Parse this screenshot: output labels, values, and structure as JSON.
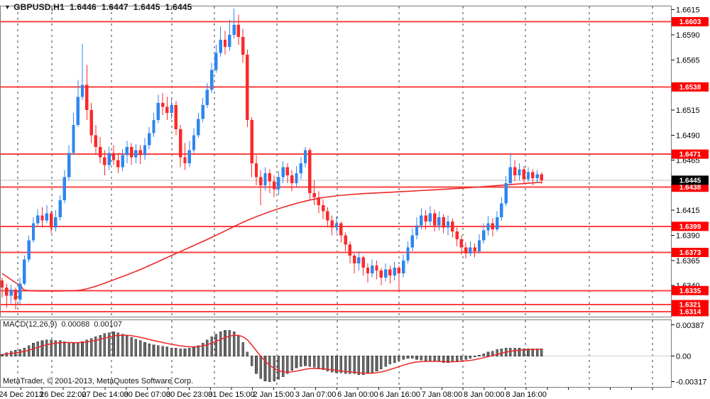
{
  "window": {
    "marker": "▼",
    "symbol_timeframe": "GBPUSD,H1",
    "quote_open": "1.6446",
    "quote_high": "1.6447",
    "quote_low": "1.6445",
    "quote_close": "1.6445"
  },
  "indicator_panel": {
    "name": "MACD(12,26,9)",
    "value": "0.00088",
    "signal_value": "0.00107",
    "axis_labels": [
      "0.00387",
      "0.00",
      "-0.00317"
    ],
    "axis_values": [
      0.00387,
      0,
      -0.00317
    ]
  },
  "footer": {
    "copyright": "MetaTrader, © 2001-2013, MetaQuotes Software Corp."
  },
  "time_axis": {
    "labels": [
      "24 Dec 2013",
      "26 Dec 22:00",
      "27 Dec 14:00",
      "30 Dec 07:00",
      "30 Dec 23:00",
      "31 Dec 15:00",
      "2 Jan 15:00",
      "3 Jan 07:00",
      "6 Jan 00:00",
      "6 Jan 16:00",
      "7 Jan 08:00",
      "8 Jan 00:00",
      "8 Jan 16:00"
    ]
  },
  "price_axis": {
    "tick_labels": [
      "1.6615",
      "1.6590",
      "1.6565",
      "1.6540",
      "1.6515",
      "1.6490",
      "1.6465",
      "1.6440",
      "1.6415",
      "1.6390",
      "1.6365",
      "1.6340",
      "1.6315"
    ],
    "tick_values": [
      1.6615,
      1.659,
      1.6565,
      1.654,
      1.6515,
      1.649,
      1.6465,
      1.644,
      1.6415,
      1.639,
      1.6365,
      1.634,
      1.6315
    ],
    "level_labels": [
      "1.6603",
      "1.6538",
      "1.6471",
      "1.6438",
      "1.6399",
      "1.6373",
      "1.6335",
      "1.6321",
      "1.6314"
    ],
    "current_price_label": "1.6445"
  },
  "colors": {
    "up_candle": "#2f86ee",
    "down_candle": "#fb2a2a",
    "level_line": "#ff4040",
    "level_tag_bg": "#fe0000",
    "current_tag_bg": "#000000",
    "current_price_line": "#bfbfbf",
    "ma_line": "#ee2828",
    "signal_line": "#ee2828",
    "histogram_fill": "#6a6a6a",
    "histogram_stroke": "#3d3d3d",
    "grid": "#3c3c3c",
    "border": "#7a7a7a",
    "zero_line": "#cfcfcf"
  },
  "chart_data": [
    {
      "type": "candlestick",
      "title": "GBPUSD,H1",
      "ylim": [
        1.6309,
        1.6619
      ],
      "x_labels": [
        "24 Dec 2013",
        "26 Dec 22:00",
        "27 Dec 14:00",
        "30 Dec 07:00",
        "30 Dec 23:00",
        "31 Dec 15:00",
        "2 Jan 15:00",
        "3 Jan 07:00",
        "6 Jan 00:00",
        "6 Jan 16:00",
        "7 Jan 08:00",
        "8 Jan 00:00",
        "8 Jan 16:00"
      ],
      "support_resistance_levels": [
        1.6603,
        1.6538,
        1.6471,
        1.6438,
        1.6399,
        1.6373,
        1.6335,
        1.6321,
        1.6314
      ],
      "current_price": 1.6445,
      "ma_line_points": [
        [
          0,
          1.6352
        ],
        [
          4,
          1.634
        ],
        [
          6,
          1.6335
        ],
        [
          16,
          1.6335
        ],
        [
          20,
          1.6338
        ],
        [
          24,
          1.6344
        ],
        [
          31,
          1.6356
        ],
        [
          39,
          1.6372
        ],
        [
          47,
          1.6388
        ],
        [
          55,
          1.6405
        ],
        [
          63,
          1.6418
        ],
        [
          71,
          1.6427
        ],
        [
          79,
          1.6431
        ],
        [
          87,
          1.6433
        ],
        [
          95,
          1.6435
        ],
        [
          103,
          1.6437
        ],
        [
          112,
          1.644
        ],
        [
          121,
          1.6443
        ]
      ],
      "ohlc": [
        [
          1.6345,
          1.6348,
          1.6328,
          1.6338
        ],
        [
          1.6338,
          1.6342,
          1.6318,
          1.633
        ],
        [
          1.633,
          1.6341,
          1.6322,
          1.6336
        ],
        [
          1.6336,
          1.6338,
          1.6316,
          1.6326
        ],
        [
          1.6326,
          1.6348,
          1.632,
          1.6342
        ],
        [
          1.6342,
          1.637,
          1.634,
          1.6366
        ],
        [
          1.6366,
          1.639,
          1.6363,
          1.6385
        ],
        [
          1.6385,
          1.6408,
          1.6383,
          1.6402
        ],
        [
          1.6402,
          1.6416,
          1.64,
          1.641
        ],
        [
          1.641,
          1.6418,
          1.6398,
          1.6405
        ],
        [
          1.6405,
          1.642,
          1.6402,
          1.6412
        ],
        [
          1.6412,
          1.6414,
          1.6392,
          1.6398
        ],
        [
          1.6398,
          1.6415,
          1.6394,
          1.6408
        ],
        [
          1.6408,
          1.643,
          1.6405,
          1.6425
        ],
        [
          1.6425,
          1.6455,
          1.6422,
          1.6448
        ],
        [
          1.6448,
          1.648,
          1.6445,
          1.6472
        ],
        [
          1.6472,
          1.6512,
          1.647,
          1.65
        ],
        [
          1.65,
          1.6545,
          1.6498,
          1.6528
        ],
        [
          1.6528,
          1.6581,
          1.6525,
          1.654
        ],
        [
          1.654,
          1.656,
          1.6505,
          1.6515
        ],
        [
          1.6515,
          1.6522,
          1.6482,
          1.649
        ],
        [
          1.649,
          1.65,
          1.647,
          1.6478
        ],
        [
          1.6478,
          1.6488,
          1.6462,
          1.6468
        ],
        [
          1.6468,
          1.6475,
          1.645,
          1.646
        ],
        [
          1.646,
          1.6478,
          1.6455,
          1.6472
        ],
        [
          1.6472,
          1.648,
          1.646,
          1.6465
        ],
        [
          1.6465,
          1.6472,
          1.6452,
          1.6458
        ],
        [
          1.6458,
          1.6476,
          1.6454,
          1.647
        ],
        [
          1.647,
          1.6484,
          1.6462,
          1.6478
        ],
        [
          1.6478,
          1.6482,
          1.646,
          1.6468
        ],
        [
          1.6468,
          1.6481,
          1.6462,
          1.6475
        ],
        [
          1.6475,
          1.648,
          1.6461,
          1.647
        ],
        [
          1.647,
          1.6487,
          1.6465,
          1.648
        ],
        [
          1.648,
          1.6498,
          1.6476,
          1.6492
        ],
        [
          1.6492,
          1.6512,
          1.6488,
          1.6505
        ],
        [
          1.6505,
          1.653,
          1.6502,
          1.6522
        ],
        [
          1.6522,
          1.6532,
          1.651,
          1.6518
        ],
        [
          1.6518,
          1.6528,
          1.6505,
          1.6512
        ],
        [
          1.6512,
          1.6526,
          1.6506,
          1.652
        ],
        [
          1.652,
          1.6524,
          1.649,
          1.6496
        ],
        [
          1.6496,
          1.65,
          1.6458,
          1.6468
        ],
        [
          1.6468,
          1.6482,
          1.6455,
          1.6462
        ],
        [
          1.6462,
          1.6484,
          1.6458,
          1.6475
        ],
        [
          1.6475,
          1.6497,
          1.6472,
          1.649
        ],
        [
          1.649,
          1.6512,
          1.6487,
          1.6506
        ],
        [
          1.6506,
          1.6527,
          1.6503,
          1.652
        ],
        [
          1.652,
          1.6542,
          1.6517,
          1.6535
        ],
        [
          1.6535,
          1.6562,
          1.6532,
          1.6555
        ],
        [
          1.6555,
          1.658,
          1.6552,
          1.6572
        ],
        [
          1.6572,
          1.6598,
          1.6568,
          1.6585
        ],
        [
          1.6585,
          1.6594,
          1.657,
          1.6578
        ],
        [
          1.6578,
          1.6605,
          1.6574,
          1.659
        ],
        [
          1.659,
          1.6616,
          1.6586,
          1.66
        ],
        [
          1.66,
          1.661,
          1.658,
          1.6588
        ],
        [
          1.6588,
          1.6596,
          1.6562,
          1.657
        ],
        [
          1.657,
          1.6575,
          1.6498,
          1.6505
        ],
        [
          1.6505,
          1.6508,
          1.6448,
          1.6462
        ],
        [
          1.6462,
          1.647,
          1.644,
          1.6448
        ],
        [
          1.6448,
          1.6455,
          1.642,
          1.644
        ],
        [
          1.644,
          1.6458,
          1.6435,
          1.6452
        ],
        [
          1.6452,
          1.6456,
          1.6432,
          1.6444
        ],
        [
          1.6444,
          1.645,
          1.6428,
          1.6436
        ],
        [
          1.6436,
          1.6454,
          1.643,
          1.6448
        ],
        [
          1.6448,
          1.6464,
          1.6442,
          1.6458
        ],
        [
          1.6458,
          1.6462,
          1.6442,
          1.645
        ],
        [
          1.645,
          1.6455,
          1.6434,
          1.6442
        ],
        [
          1.6442,
          1.6459,
          1.6438,
          1.6452
        ],
        [
          1.6452,
          1.6468,
          1.6446,
          1.6462
        ],
        [
          1.6462,
          1.6478,
          1.6458,
          1.6475
        ],
        [
          1.6475,
          1.6477,
          1.6425,
          1.6432
        ],
        [
          1.6432,
          1.6445,
          1.642,
          1.6428
        ],
        [
          1.6428,
          1.6434,
          1.6412,
          1.642
        ],
        [
          1.642,
          1.6426,
          1.6406,
          1.6414
        ],
        [
          1.6414,
          1.6418,
          1.6398,
          1.6405
        ],
        [
          1.6405,
          1.641,
          1.639,
          1.6398
        ],
        [
          1.6398,
          1.6409,
          1.6392,
          1.6402
        ],
        [
          1.6402,
          1.6404,
          1.6383,
          1.639
        ],
        [
          1.639,
          1.6393,
          1.6374,
          1.6381
        ],
        [
          1.6381,
          1.6384,
          1.6362,
          1.637
        ],
        [
          1.637,
          1.6372,
          1.6352,
          1.6362
        ],
        [
          1.6362,
          1.6374,
          1.6355,
          1.6368
        ],
        [
          1.6368,
          1.637,
          1.635,
          1.6358
        ],
        [
          1.6358,
          1.6362,
          1.6343,
          1.6352
        ],
        [
          1.6352,
          1.6366,
          1.6348,
          1.636
        ],
        [
          1.636,
          1.6365,
          1.6346,
          1.6355
        ],
        [
          1.6355,
          1.6358,
          1.634,
          1.6348
        ],
        [
          1.6348,
          1.6362,
          1.6344,
          1.6356
        ],
        [
          1.6356,
          1.636,
          1.6342,
          1.635
        ],
        [
          1.635,
          1.6364,
          1.6345,
          1.6358
        ],
        [
          1.6358,
          1.636,
          1.6333,
          1.6352
        ],
        [
          1.6352,
          1.6371,
          1.6348,
          1.6365
        ],
        [
          1.6365,
          1.6384,
          1.6362,
          1.6378
        ],
        [
          1.6378,
          1.6397,
          1.6374,
          1.639
        ],
        [
          1.639,
          1.6408,
          1.6386,
          1.64
        ],
        [
          1.64,
          1.6417,
          1.6396,
          1.641
        ],
        [
          1.641,
          1.6415,
          1.6396,
          1.6404
        ],
        [
          1.6404,
          1.6419,
          1.64,
          1.6412
        ],
        [
          1.6412,
          1.6416,
          1.6394,
          1.64
        ],
        [
          1.64,
          1.6414,
          1.6395,
          1.6408
        ],
        [
          1.6408,
          1.6411,
          1.6392,
          1.6398
        ],
        [
          1.6398,
          1.641,
          1.639,
          1.6404
        ],
        [
          1.6404,
          1.6407,
          1.6388,
          1.6394
        ],
        [
          1.6394,
          1.6398,
          1.6379,
          1.6386
        ],
        [
          1.6386,
          1.639,
          1.6371,
          1.6378
        ],
        [
          1.6378,
          1.6383,
          1.6367,
          1.6372
        ],
        [
          1.6372,
          1.6384,
          1.6369,
          1.6378
        ],
        [
          1.6378,
          1.6382,
          1.6368,
          1.6374
        ],
        [
          1.6374,
          1.6391,
          1.6372,
          1.6385
        ],
        [
          1.6385,
          1.6402,
          1.6382,
          1.6395
        ],
        [
          1.6395,
          1.6409,
          1.639,
          1.6402
        ],
        [
          1.6402,
          1.6407,
          1.6389,
          1.6396
        ],
        [
          1.6396,
          1.6414,
          1.6394,
          1.6408
        ],
        [
          1.6408,
          1.6428,
          1.6405,
          1.6422
        ],
        [
          1.6422,
          1.6449,
          1.6419,
          1.6442
        ],
        [
          1.6442,
          1.6472,
          1.644,
          1.6458
        ],
        [
          1.6458,
          1.6465,
          1.6444,
          1.645
        ],
        [
          1.645,
          1.6462,
          1.6445,
          1.6456
        ],
        [
          1.6456,
          1.6459,
          1.6441,
          1.6446
        ],
        [
          1.6446,
          1.6458,
          1.6443,
          1.6453
        ],
        [
          1.6453,
          1.6456,
          1.644,
          1.6447
        ],
        [
          1.6447,
          1.6455,
          1.6442,
          1.6451
        ],
        [
          1.6451,
          1.6453,
          1.6441,
          1.6445
        ]
      ]
    },
    {
      "type": "bar",
      "title": "MACD(12,26,9)",
      "ylim": [
        -0.00385,
        0.00455
      ],
      "y_tick_values": [
        0.00387,
        0,
        -0.00317
      ],
      "signal_period": 9,
      "values": [
        0.0002,
        0.0004,
        0.0006,
        0.0007,
        0.0008,
        0.001,
        0.0013,
        0.0016,
        0.0018,
        0.0019,
        0.002,
        0.002,
        0.0019,
        0.0019,
        0.0018,
        0.0017,
        0.0016,
        0.0017,
        0.0018,
        0.002,
        0.0022,
        0.0024,
        0.0026,
        0.0028,
        0.0029,
        0.003,
        0.0029,
        0.0027,
        0.0025,
        0.0023,
        0.0021,
        0.0019,
        0.0017,
        0.0015,
        0.0014,
        0.0013,
        0.0012,
        0.0011,
        0.001,
        0.001,
        0.0009,
        0.0009,
        0.001,
        0.0011,
        0.0013,
        0.0016,
        0.002,
        0.0024,
        0.0027,
        0.003,
        0.0032,
        0.0032,
        0.003,
        0.0026,
        0.0017,
        0.0005,
        -0.0012,
        -0.0022,
        -0.0028,
        -0.0031,
        -0.0032,
        -0.0031,
        -0.0029,
        -0.0026,
        -0.0022,
        -0.0018,
        -0.0015,
        -0.0013,
        -0.0012,
        -0.0013,
        -0.0014,
        -0.0016,
        -0.0017,
        -0.0019,
        -0.002,
        -0.0021,
        -0.0021,
        -0.0022,
        -0.0022,
        -0.0022,
        -0.0023,
        -0.0023,
        -0.0022,
        -0.0021,
        -0.0019,
        -0.0016,
        -0.0013,
        -0.001,
        -0.0008,
        -0.0006,
        -0.0004,
        -0.0003,
        -0.0003,
        -0.0004,
        -0.0005,
        -0.0006,
        -0.0006,
        -0.0007,
        -0.0007,
        -0.0008,
        -0.0008,
        -0.0007,
        -0.0006,
        -0.0005,
        -0.0004,
        -0.0003,
        -0.0001,
        0.0001,
        0.0003,
        0.0005,
        0.0006,
        0.0008,
        0.0009,
        0.001,
        0.001,
        0.001,
        0.001,
        0.0009,
        0.0009,
        0.0009,
        0.0009,
        0.00088
      ]
    }
  ]
}
